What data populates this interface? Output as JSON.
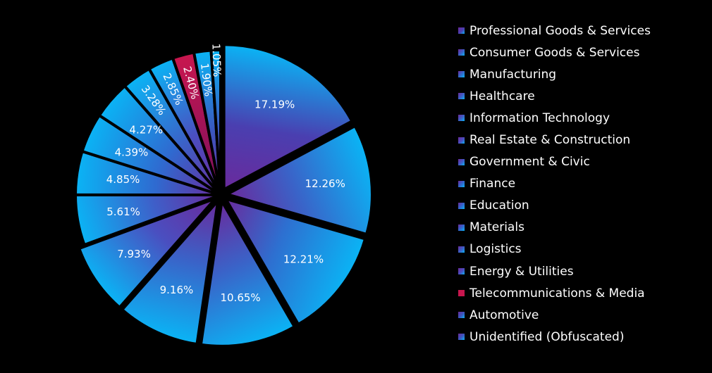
{
  "chart_data": {
    "type": "pie",
    "title": "",
    "start_angle_deg": 0,
    "direction": "clockwise",
    "legend_position": "right",
    "categories": [
      "Professional Goods & Services",
      "Consumer Goods & Services",
      "Manufacturing",
      "Healthcare",
      "Information Technology",
      "Real Estate & Construction",
      "Government & Civic",
      "Finance",
      "Education",
      "Materials",
      "Logistics",
      "Energy & Utilities",
      "Telecommunications & Media",
      "Automotive",
      "Unidentified (Obfuscated)"
    ],
    "values": [
      17.19,
      12.26,
      12.21,
      10.65,
      9.16,
      7.93,
      5.61,
      4.85,
      4.39,
      4.27,
      3.28,
      2.85,
      2.4,
      1.9,
      1.05
    ],
    "labels": [
      "17.19%",
      "12.26%",
      "12.21%",
      "10.65%",
      "9.16%",
      "7.93%",
      "5.61%",
      "4.85%",
      "4.39%",
      "4.27%",
      "3.28%",
      "2.85%",
      "2.40%",
      "1.90%",
      "1.05%"
    ],
    "colors": [
      "#4a3fb0",
      "#3a63c8",
      "#2e6fd0",
      "#3a63c8",
      "#3a63c8",
      "#4a4fc0",
      "#3f5ec8",
      "#2f6ad0",
      "#2f6ad0",
      "#2f6ad0",
      "#3a63c8",
      "#4a4fc0",
      "#c8164e",
      "#3a58c0",
      "#3a58c0"
    ],
    "gradient_outer_color": "#0ab4f5",
    "gradient_inner_color": "#6a2a9c",
    "exploded_slices": [
      0,
      1,
      2,
      3,
      4,
      5
    ],
    "background": "#000000"
  }
}
